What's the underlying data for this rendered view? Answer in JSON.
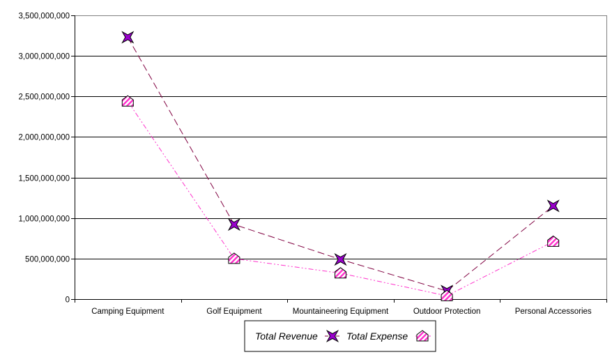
{
  "chart_data": {
    "type": "line",
    "title": "",
    "xlabel": "",
    "ylabel": "",
    "categories": [
      "Camping Equipment",
      "Golf Equipment",
      "Mountaineering Equipment",
      "Outdoor Protection",
      "Personal Accessories"
    ],
    "ylim": [
      0,
      3500000000
    ],
    "yticks": [
      0,
      500000000,
      1000000000,
      1500000000,
      2000000000,
      2500000000,
      3000000000,
      3500000000
    ],
    "ytick_labels": [
      "0",
      "500,000,000",
      "1,000,000,000",
      "1,500,000,000",
      "2,000,000,000",
      "2,500,000,000",
      "3,000,000,000",
      "3,500,000,000"
    ],
    "grid": true,
    "legend_position": "bottom",
    "series": [
      {
        "name": "Total Revenue",
        "values": [
          3230000000,
          920000000,
          490000000,
          100000000,
          1150000000
        ],
        "color": "#800040",
        "marker_fill": "#9900cc",
        "marker": "four-point-star",
        "line_style": "dashed"
      },
      {
        "name": "Total Expense",
        "values": [
          2440000000,
          500000000,
          320000000,
          40000000,
          710000000
        ],
        "color": "#ff33cc",
        "marker_fill": "#ff33cc",
        "marker": "hatched-pentagon",
        "line_style": "dash-dot-dot"
      }
    ]
  }
}
